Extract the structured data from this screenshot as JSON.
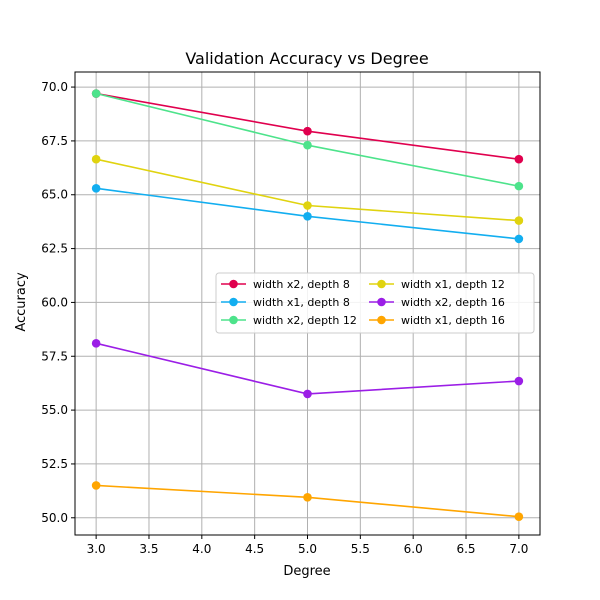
{
  "chart_data": {
    "type": "line",
    "title": "Validation Accuracy vs Degree",
    "xlabel": "Degree",
    "ylabel": "Accuracy",
    "xlim": [
      2.8,
      7.2
    ],
    "ylim": [
      49.2,
      70.7
    ],
    "x_ticks": [
      3.0,
      3.5,
      4.0,
      4.5,
      5.0,
      5.5,
      6.0,
      6.5,
      7.0
    ],
    "y_ticks": [
      50.0,
      52.5,
      55.0,
      57.5,
      60.0,
      62.5,
      65.0,
      67.5,
      70.0
    ],
    "x_tick_labels": [
      "3.0",
      "3.5",
      "4.0",
      "4.5",
      "5.0",
      "5.5",
      "6.0",
      "6.5",
      "7.0"
    ],
    "y_tick_labels": [
      "50.0",
      "52.5",
      "55.0",
      "57.5",
      "60.0",
      "62.5",
      "65.0",
      "67.5",
      "70.0"
    ],
    "grid": true,
    "legend_position": "center-right",
    "legend_columns": 2,
    "x": [
      3,
      5,
      7
    ],
    "series": [
      {
        "name": "width x2, depth 8",
        "color": "#e0004e",
        "values": [
          69.7,
          67.95,
          66.65
        ]
      },
      {
        "name": "width x1, depth 8",
        "color": "#12aef0",
        "values": [
          65.3,
          64.0,
          62.95
        ]
      },
      {
        "name": "width x2, depth 12",
        "color": "#4de38b",
        "values": [
          69.7,
          67.3,
          65.4
        ]
      },
      {
        "name": "width x1, depth 12",
        "color": "#e0d30f",
        "values": [
          66.65,
          64.5,
          63.8
        ]
      },
      {
        "name": "width x2, depth 16",
        "color": "#9b1ee6",
        "values": [
          58.1,
          55.75,
          56.35
        ]
      },
      {
        "name": "width x1, depth 16",
        "color": "#ffa500",
        "values": [
          51.5,
          50.95,
          50.05
        ]
      }
    ]
  }
}
